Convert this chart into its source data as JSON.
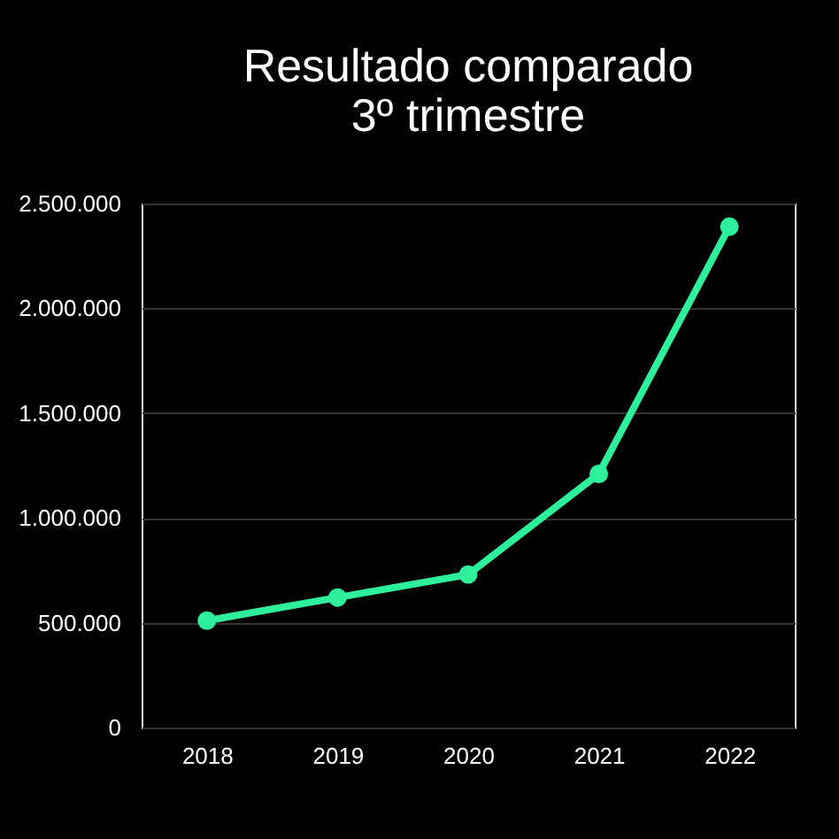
{
  "chart_data": {
    "type": "line",
    "title": "Resultado comparado\n3º trimestre",
    "categories": [
      "2018",
      "2019",
      "2020",
      "2021",
      "2022"
    ],
    "series": [
      {
        "color": "#2ef09a",
        "values": [
          510000,
          620000,
          730000,
          1210000,
          2390000
        ]
      }
    ],
    "ylim": [
      0,
      2500000
    ],
    "yticks": [
      {
        "value": 0,
        "label": "0"
      },
      {
        "value": 500000,
        "label": "500.000"
      },
      {
        "value": 1000000,
        "label": "1.000.000"
      },
      {
        "value": 1500000,
        "label": "1.500.000"
      },
      {
        "value": 2000000,
        "label": "2.000.000"
      },
      {
        "value": 2500000,
        "label": "2.500.000"
      }
    ],
    "grid": "y",
    "marker": "circle",
    "line_style": "solid",
    "legend": false
  }
}
